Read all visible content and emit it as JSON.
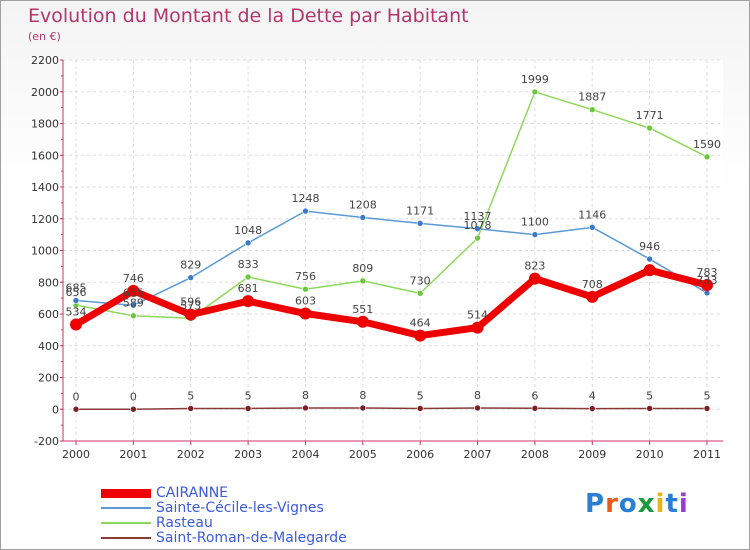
{
  "title": "Evolution du Montant de la Dette par Habitant",
  "subtitle": "(en €)",
  "logo": {
    "text": "Proxiti",
    "colors": [
      "#2a7fd4",
      "#e85b1a",
      "#2a7fd4",
      "#1a9a3a",
      "#e8b41a",
      "#2a7fd4",
      "#9a3ad4"
    ]
  },
  "chart_data": {
    "type": "line",
    "title": "Evolution du Montant de la Dette par Habitant",
    "ylabel": "(en €)",
    "xlabel": "",
    "categories": [
      "2000",
      "2001",
      "2002",
      "2003",
      "2004",
      "2005",
      "2006",
      "2007",
      "2008",
      "2009",
      "2010",
      "2011"
    ],
    "ylim": [
      -200,
      2200
    ],
    "yticks": [
      -200,
      0,
      200,
      400,
      600,
      800,
      1000,
      1200,
      1400,
      1600,
      1800,
      2000,
      2200
    ],
    "grid": true,
    "legend_position": "bottom-left",
    "series": [
      {
        "name": "CAIRANNE",
        "color": "#ee0000",
        "values": [
          534,
          746,
          596,
          681,
          603,
          551,
          464,
          514,
          823,
          708,
          876,
          783
        ],
        "labels": [
          "534",
          "746",
          "596",
          "681",
          "603",
          "551",
          "464",
          "514",
          "823",
          "708",
          "",
          "783"
        ]
      },
      {
        "name": "Sainte-Cécile-les-Vignes",
        "color": "#5a9ad4",
        "values": [
          685,
          655,
          829,
          1048,
          1248,
          1208,
          1171,
          1137,
          1100,
          1146,
          946,
          733
        ],
        "labels": [
          "685",
          "655",
          "829",
          "1048",
          "1248",
          "1208",
          "1171",
          "1137",
          "1100",
          "1146",
          "946",
          "733"
        ]
      },
      {
        "name": "Rasteau",
        "color": "#8ed85a",
        "values": [
          656,
          589,
          573,
          833,
          756,
          809,
          730,
          1078,
          1999,
          1887,
          1771,
          1590
        ],
        "labels": [
          "656",
          "589",
          "573",
          "833",
          "756",
          "809",
          "730",
          "1078",
          "1999",
          "1887",
          "1771",
          "1590"
        ]
      },
      {
        "name": "Saint-Roman-de-Malegarde",
        "color": "#8b3a3a",
        "values": [
          0,
          0,
          5,
          5,
          8,
          8,
          5,
          8,
          6,
          4,
          5,
          5
        ],
        "labels": [
          "0",
          "0",
          "5",
          "5",
          "8",
          "8",
          "5",
          "8",
          "6",
          "4",
          "5",
          "5"
        ]
      }
    ]
  }
}
